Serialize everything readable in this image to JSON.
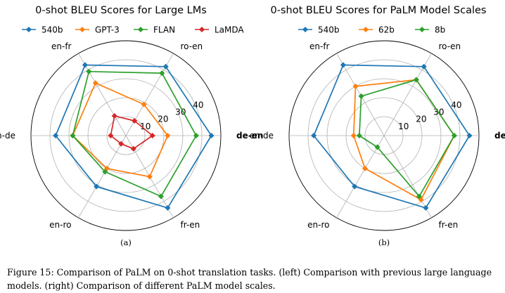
{
  "chart_data": [
    {
      "type": "radar",
      "title": "0-shot BLEU Scores for Large LMs",
      "sublabel": "(a)",
      "axes": [
        "de-en",
        "ro-en",
        "en-fr",
        "en-de",
        "en-ro",
        "fr-en"
      ],
      "rlim": [
        0,
        50
      ],
      "ticks": [
        10,
        20,
        30,
        40
      ],
      "legend": "top",
      "series": [
        {
          "name": "540b",
          "color": "#1f77b4",
          "values": [
            45,
            42,
            43,
            37,
            31,
            44
          ]
        },
        {
          "name": "GPT-3",
          "color": "#ff7f0e",
          "values": [
            22,
            19,
            32,
            28,
            20,
            25
          ]
        },
        {
          "name": "FLAN",
          "color": "#2ca02c",
          "values": [
            37,
            38,
            39,
            28,
            22,
            37
          ]
        },
        {
          "name": "LaMDA",
          "color": "#d62728",
          "values": [
            14,
            9,
            12,
            8,
            5,
            8
          ]
        }
      ]
    },
    {
      "type": "radar",
      "title": "0-shot BLEU Scores for PaLM Model Scales",
      "sublabel": "(b)",
      "axes": [
        "de-en",
        "ro-en",
        "en-fr",
        "en-de",
        "en-ro",
        "fr-en"
      ],
      "rlim": [
        0,
        50
      ],
      "ticks": [
        10,
        20,
        30,
        40
      ],
      "legend": "top",
      "series": [
        {
          "name": "540b",
          "color": "#1f77b4",
          "values": [
            45,
            42,
            43,
            37,
            31,
            44
          ]
        },
        {
          "name": "62b",
          "color": "#ff7f0e",
          "values": [
            37,
            34,
            30,
            16,
            20,
            39
          ]
        },
        {
          "name": "8b",
          "color": "#2ca02c",
          "values": [
            37,
            34,
            24,
            13,
            7,
            37
          ]
        }
      ]
    }
  ],
  "caption": {
    "line1": "Figure 15: Comparison of PaLM on 0-shot translation tasks. (left) Comparison with previous large language",
    "line2": "models. (right) Comparison of different PaLM model scales."
  }
}
